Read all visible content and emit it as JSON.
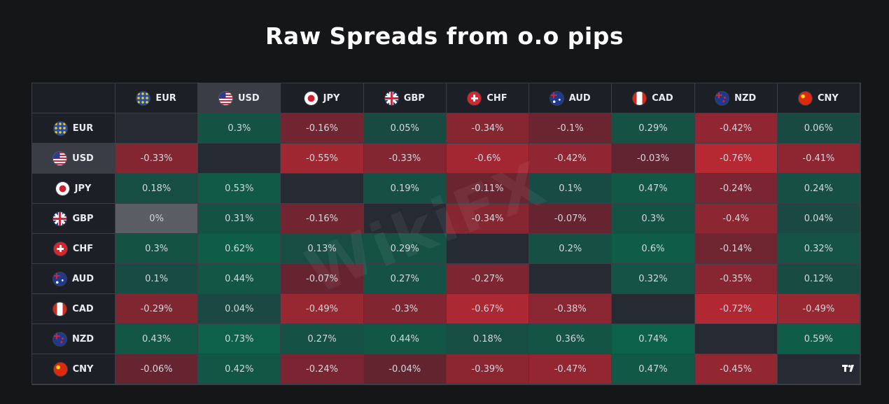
{
  "title": "Raw Spreads from o.o pips",
  "brand_mark": "TradingView",
  "watermark": "WikiFX",
  "currencies": [
    {
      "code": "EUR",
      "flag": "eu-flag-icon"
    },
    {
      "code": "USD",
      "flag": "us-flag-icon"
    },
    {
      "code": "JPY",
      "flag": "jp-flag-icon"
    },
    {
      "code": "GBP",
      "flag": "gb-flag-icon"
    },
    {
      "code": "CHF",
      "flag": "ch-flag-icon"
    },
    {
      "code": "AUD",
      "flag": "au-flag-icon"
    },
    {
      "code": "CAD",
      "flag": "ca-flag-icon"
    },
    {
      "code": "NZD",
      "flag": "nz-flag-icon"
    },
    {
      "code": "CNY",
      "flag": "cn-flag-icon"
    }
  ],
  "highlighted_column": "USD",
  "highlighted_row": "USD",
  "colors": {
    "positive": "#1a5a49",
    "positive_strong": "#0f5e48",
    "negative": "#6b2530",
    "negative_strong": "#b02a33",
    "neutral": "#262a33",
    "zero": "#5a5d64"
  },
  "chart_data": {
    "type": "heatmap",
    "title": "Raw Spreads from o.o pips",
    "rows": [
      "EUR",
      "USD",
      "JPY",
      "GBP",
      "CHF",
      "AUD",
      "CAD",
      "NZD",
      "CNY"
    ],
    "columns": [
      "EUR",
      "USD",
      "JPY",
      "GBP",
      "CHF",
      "AUD",
      "CAD",
      "NZD",
      "CNY"
    ],
    "unit": "%",
    "values": [
      [
        null,
        0.3,
        -0.16,
        0.05,
        -0.34,
        -0.1,
        0.29,
        -0.42,
        0.06
      ],
      [
        -0.33,
        null,
        -0.55,
        -0.33,
        -0.6,
        -0.42,
        -0.03,
        -0.76,
        -0.41
      ],
      [
        0.18,
        0.53,
        null,
        0.19,
        -0.11,
        0.1,
        0.47,
        -0.24,
        0.24
      ],
      [
        0,
        0.31,
        -0.16,
        null,
        -0.34,
        -0.07,
        0.3,
        -0.4,
        0.04
      ],
      [
        0.3,
        0.62,
        0.13,
        0.29,
        null,
        0.2,
        0.6,
        -0.14,
        0.32
      ],
      [
        0.1,
        0.44,
        -0.07,
        0.27,
        -0.27,
        null,
        0.32,
        -0.35,
        0.12
      ],
      [
        -0.29,
        0.04,
        -0.49,
        -0.3,
        -0.67,
        -0.38,
        null,
        -0.72,
        -0.49
      ],
      [
        0.43,
        0.73,
        0.27,
        0.44,
        0.18,
        0.36,
        0.74,
        null,
        0.59
      ],
      [
        -0.06,
        0.42,
        -0.24,
        -0.04,
        -0.39,
        -0.47,
        0.47,
        -0.45,
        null
      ]
    ],
    "labels": [
      [
        "",
        "0.3%",
        "-0.16%",
        "0.05%",
        "-0.34%",
        "-0.1%",
        "0.29%",
        "-0.42%",
        "0.06%"
      ],
      [
        "-0.33%",
        "",
        "-0.55%",
        "-0.33%",
        "-0.6%",
        "-0.42%",
        "-0.03%",
        "-0.76%",
        "-0.41%"
      ],
      [
        "0.18%",
        "0.53%",
        "",
        "0.19%",
        "-0.11%",
        "0.1%",
        "0.47%",
        "-0.24%",
        "0.24%"
      ],
      [
        "0%",
        "0.31%",
        "-0.16%",
        "",
        "-0.34%",
        "-0.07%",
        "0.3%",
        "-0.4%",
        "0.04%"
      ],
      [
        "0.3%",
        "0.62%",
        "0.13%",
        "0.29%",
        "",
        "0.2%",
        "0.6%",
        "-0.14%",
        "0.32%"
      ],
      [
        "0.1%",
        "0.44%",
        "-0.07%",
        "0.27%",
        "-0.27%",
        "",
        "0.32%",
        "-0.35%",
        "0.12%"
      ],
      [
        "-0.29%",
        "0.04%",
        "-0.49%",
        "-0.3%",
        "-0.67%",
        "-0.38%",
        "",
        "-0.72%",
        "-0.49%"
      ],
      [
        "0.43%",
        "0.73%",
        "0.27%",
        "0.44%",
        "0.18%",
        "0.36%",
        "0.74%",
        "",
        "0.59%"
      ],
      [
        "-0.06%",
        "0.42%",
        "-0.24%",
        "-0.04%",
        "-0.39%",
        "-0.47%",
        "0.47%",
        "-0.45%",
        ""
      ]
    ],
    "grid": true
  }
}
